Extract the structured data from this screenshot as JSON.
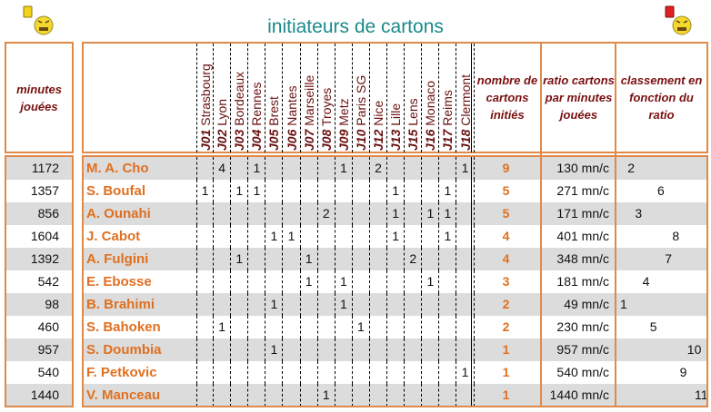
{
  "title": "initiateurs de cartons",
  "icons": {
    "left": "yellow-card-smiley-icon",
    "right": "red-card-smiley-icon"
  },
  "colors": {
    "accent": "#e08a4a",
    "title": "#1b8a8a",
    "header_text": "#7a1010",
    "name_text": "#e07020",
    "stripe": "#dcdcdc"
  },
  "headers": {
    "minutes": "minutes jouées",
    "count": "nombre de cartons initiés",
    "ratio": "ratio cartons par minutes jouées",
    "rank": "classement en fonction du ratio"
  },
  "matches": [
    {
      "code": "J01",
      "team": "Strasbourg"
    },
    {
      "code": "J02",
      "team": "Lyon"
    },
    {
      "code": "J03",
      "team": "Bordeaux"
    },
    {
      "code": "J04",
      "team": "Rennes"
    },
    {
      "code": "J05",
      "team": "Brest"
    },
    {
      "code": "J06",
      "team": "Nantes"
    },
    {
      "code": "J07",
      "team": "Marseille"
    },
    {
      "code": "J08",
      "team": "Troyes"
    },
    {
      "code": "J09",
      "team": "Metz"
    },
    {
      "code": "J10",
      "team": "Paris SG"
    },
    {
      "code": "J12",
      "team": "Nice"
    },
    {
      "code": "J13",
      "team": "Lille"
    },
    {
      "code": "J15",
      "team": "Lens"
    },
    {
      "code": "J16",
      "team": "Monaco"
    },
    {
      "code": "J17",
      "team": "Reims"
    },
    {
      "code": "J18",
      "team": "Clermont"
    }
  ],
  "players": [
    {
      "minutes": "1172",
      "name": "M. A. Cho",
      "cells": [
        "",
        "4",
        "",
        "1",
        "",
        "",
        "",
        "",
        "1",
        "",
        "2",
        "",
        "",
        "",
        "",
        "1"
      ],
      "count": "9",
      "ratio": "130 mn/c",
      "rank": 2
    },
    {
      "minutes": "1357",
      "name": "S. Boufal",
      "cells": [
        "1",
        "",
        "1",
        "1",
        "",
        "",
        "",
        "",
        "",
        "",
        "",
        "1",
        "",
        "",
        "1",
        ""
      ],
      "count": "5",
      "ratio": "271 mn/c",
      "rank": 6
    },
    {
      "minutes": "856",
      "name": "A. Ounahi",
      "cells": [
        "",
        "",
        "",
        "",
        "",
        "",
        "",
        "2",
        "",
        "",
        "",
        "1",
        "",
        "1",
        "1",
        ""
      ],
      "count": "5",
      "ratio": "171 mn/c",
      "rank": 3
    },
    {
      "minutes": "1604",
      "name": "J. Cabot",
      "cells": [
        "",
        "",
        "",
        "",
        "1",
        "1",
        "",
        "",
        "",
        "",
        "",
        "1",
        "",
        "",
        "1",
        ""
      ],
      "count": "4",
      "ratio": "401 mn/c",
      "rank": 8
    },
    {
      "minutes": "1392",
      "name": "A. Fulgini",
      "cells": [
        "",
        "",
        "1",
        "",
        "",
        "",
        "1",
        "",
        "",
        "",
        "",
        "",
        "2",
        "",
        "",
        ""
      ],
      "count": "4",
      "ratio": "348 mn/c",
      "rank": 7
    },
    {
      "minutes": "542",
      "name": "E. Ebosse",
      "cells": [
        "",
        "",
        "",
        "",
        "",
        "",
        "1",
        "",
        "1",
        "",
        "",
        "",
        "",
        "1",
        "",
        ""
      ],
      "count": "3",
      "ratio": "181 mn/c",
      "rank": 4
    },
    {
      "minutes": "98",
      "name": "B. Brahimi",
      "cells": [
        "",
        "",
        "",
        "",
        "1",
        "",
        "",
        "",
        "1",
        "",
        "",
        "",
        "",
        "",
        "",
        ""
      ],
      "count": "2",
      "ratio": "49 mn/c",
      "rank": 1
    },
    {
      "minutes": "460",
      "name": "S. Bahoken",
      "cells": [
        "",
        "1",
        "",
        "",
        "",
        "",
        "",
        "",
        "",
        "1",
        "",
        "",
        "",
        "",
        "",
        ""
      ],
      "count": "2",
      "ratio": "230 mn/c",
      "rank": 5
    },
    {
      "minutes": "957",
      "name": "S. Doumbia",
      "cells": [
        "",
        "",
        "",
        "",
        "1",
        "",
        "",
        "",
        "",
        "",
        "",
        "",
        "",
        "",
        "",
        ""
      ],
      "count": "1",
      "ratio": "957 mn/c",
      "rank": 10
    },
    {
      "minutes": "540",
      "name": "F. Petkovic",
      "cells": [
        "",
        "",
        "",
        "",
        "",
        "",
        "",
        "",
        "",
        "",
        "",
        "",
        "",
        "",
        "",
        "1"
      ],
      "count": "1",
      "ratio": "540 mn/c",
      "rank": 9
    },
    {
      "minutes": "1440",
      "name": "V. Manceau",
      "cells": [
        "",
        "",
        "",
        "",
        "",
        "",
        "",
        "1",
        "",
        "",
        "",
        "",
        "",
        "",
        "",
        ""
      ],
      "count": "1",
      "ratio": "1440 mn/c",
      "rank": 11
    }
  ]
}
